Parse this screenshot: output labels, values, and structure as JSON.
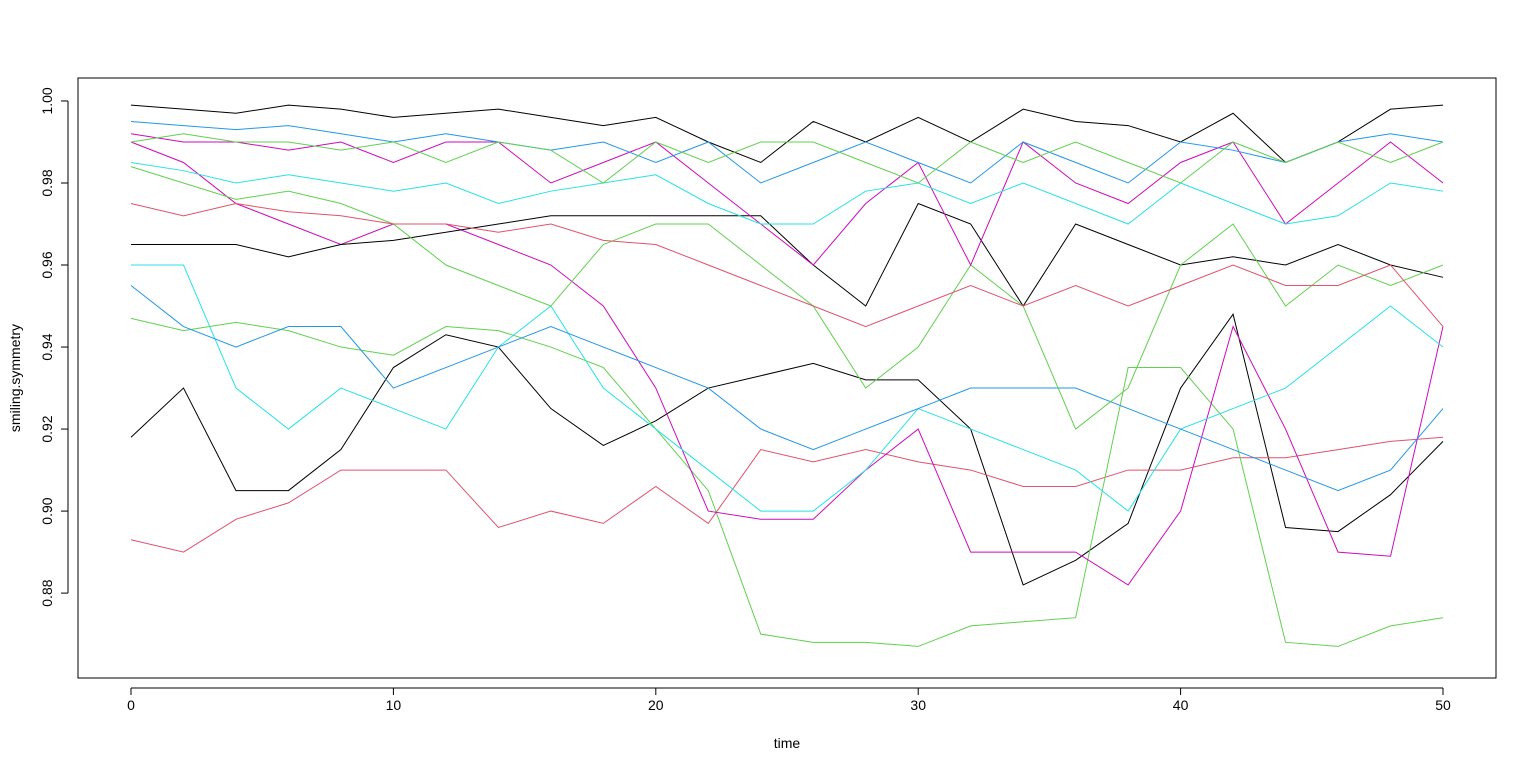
{
  "chart_data": {
    "type": "line",
    "x_label": "time",
    "y_label": "smiling.symmetry",
    "xlim": [
      -2.02,
      52.02
    ],
    "ylim": [
      0.8593,
      1.0056
    ],
    "xticks": [
      0,
      10,
      20,
      30,
      40,
      50
    ],
    "yticks": [
      0.88,
      {
        "value": 0.9,
        "label": "0.90"
      },
      0.92,
      0.94,
      0.96,
      0.98,
      {
        "value": 1,
        "label": "1.00"
      }
    ],
    "grid": false,
    "x": [
      0,
      2,
      4,
      6,
      8,
      10,
      12,
      14,
      16,
      18,
      20,
      22,
      24,
      26,
      28,
      30,
      32,
      34,
      36,
      38,
      40,
      42,
      44,
      46,
      48,
      50
    ],
    "series": [
      {
        "color": "#000000",
        "values": [
          0.918,
          0.93,
          0.905,
          0.905,
          0.915,
          0.935,
          0.943,
          0.94,
          0.925,
          0.916,
          0.922,
          0.93,
          0.933,
          0.936,
          0.932,
          0.932,
          0.92,
          0.882,
          0.888,
          0.897,
          0.93,
          0.948,
          0.896,
          0.895,
          0.904,
          0.917
        ]
      },
      {
        "color": "#DF536B",
        "values": [
          0.893,
          0.89,
          0.898,
          0.902,
          0.91,
          0.91,
          0.91,
          0.896,
          0.9,
          0.897,
          0.906,
          0.897,
          0.915,
          0.912,
          0.915,
          0.912,
          0.91,
          0.906,
          0.906,
          0.91,
          0.91,
          0.913,
          0.913,
          0.915,
          0.917,
          0.918
        ]
      },
      {
        "color": "#61D04F",
        "values": [
          0.947,
          0.944,
          0.946,
          0.944,
          0.94,
          0.938,
          0.945,
          0.944,
          0.94,
          0.935,
          0.92,
          0.905,
          0.87,
          0.868,
          0.868,
          0.867,
          0.872,
          0.873,
          0.874,
          0.935,
          0.935,
          0.92,
          0.868,
          0.867,
          0.872,
          0.874
        ]
      },
      {
        "color": "#CD0BBC",
        "values": [
          0.99,
          0.985,
          0.975,
          0.97,
          0.965,
          0.97,
          0.97,
          0.965,
          0.96,
          0.95,
          0.93,
          0.9,
          0.898,
          0.898,
          0.91,
          0.92,
          0.89,
          0.89,
          0.89,
          0.882,
          0.9,
          0.945,
          0.92,
          0.89,
          0.889,
          0.945
        ]
      },
      {
        "color": "#28E2E5",
        "values": [
          0.96,
          0.96,
          0.93,
          0.92,
          0.93,
          0.925,
          0.92,
          0.94,
          0.95,
          0.93,
          0.92,
          0.91,
          0.9,
          0.9,
          0.91,
          0.925,
          0.92,
          0.915,
          0.91,
          0.9,
          0.92,
          0.925,
          0.93,
          0.94,
          0.95,
          0.94
        ]
      },
      {
        "color": "#2297E6",
        "values": [
          0.955,
          0.945,
          0.94,
          0.945,
          0.945,
          0.93,
          0.935,
          0.94,
          0.945,
          0.94,
          0.935,
          0.93,
          0.92,
          0.915,
          0.92,
          0.925,
          0.93,
          0.93,
          0.93,
          0.925,
          0.92,
          0.915,
          0.91,
          0.905,
          0.91,
          0.925
        ]
      },
      {
        "color": "#000000",
        "values": [
          0.999,
          0.998,
          0.997,
          0.999,
          0.998,
          0.996,
          0.997,
          0.998,
          0.996,
          0.994,
          0.996,
          0.99,
          0.985,
          0.995,
          0.99,
          0.996,
          0.99,
          0.998,
          0.995,
          0.994,
          0.99,
          0.997,
          0.985,
          0.99,
          0.998,
          0.999
        ]
      },
      {
        "color": "#000000",
        "values": [
          0.965,
          0.965,
          0.965,
          0.962,
          0.965,
          0.966,
          0.968,
          0.97,
          0.972,
          0.972,
          0.972,
          0.972,
          0.972,
          0.96,
          0.95,
          0.975,
          0.97,
          0.95,
          0.97,
          0.965,
          0.96,
          0.962,
          0.96,
          0.965,
          0.96,
          0.957
        ]
      },
      {
        "color": "#61D04F",
        "values": [
          0.984,
          0.98,
          0.976,
          0.978,
          0.975,
          0.97,
          0.96,
          0.955,
          0.95,
          0.965,
          0.97,
          0.97,
          0.96,
          0.95,
          0.93,
          0.94,
          0.96,
          0.95,
          0.92,
          0.93,
          0.96,
          0.97,
          0.95,
          0.96,
          0.955,
          0.96
        ]
      },
      {
        "color": "#CD0BBC",
        "values": [
          0.992,
          0.99,
          0.99,
          0.988,
          0.99,
          0.985,
          0.99,
          0.99,
          0.98,
          0.985,
          0.99,
          0.98,
          0.97,
          0.96,
          0.975,
          0.985,
          0.96,
          0.99,
          0.98,
          0.975,
          0.985,
          0.99,
          0.97,
          0.98,
          0.99,
          0.98
        ]
      },
      {
        "color": "#28E2E5",
        "values": [
          0.985,
          0.983,
          0.98,
          0.982,
          0.98,
          0.978,
          0.98,
          0.975,
          0.978,
          0.98,
          0.982,
          0.975,
          0.97,
          0.97,
          0.978,
          0.98,
          0.975,
          0.98,
          0.975,
          0.97,
          0.98,
          0.975,
          0.97,
          0.972,
          0.98,
          0.978
        ]
      },
      {
        "color": "#DF536B",
        "values": [
          0.975,
          0.972,
          0.975,
          0.973,
          0.972,
          0.97,
          0.97,
          0.968,
          0.97,
          0.966,
          0.965,
          0.96,
          0.955,
          0.95,
          0.945,
          0.95,
          0.955,
          0.95,
          0.955,
          0.95,
          0.955,
          0.96,
          0.955,
          0.955,
          0.96,
          0.945
        ]
      },
      {
        "color": "#2297E6",
        "values": [
          0.995,
          0.994,
          0.993,
          0.994,
          0.992,
          0.99,
          0.992,
          0.99,
          0.988,
          0.99,
          0.985,
          0.99,
          0.98,
          0.985,
          0.99,
          0.985,
          0.98,
          0.99,
          0.985,
          0.98,
          0.99,
          0.988,
          0.985,
          0.99,
          0.992,
          0.99
        ]
      },
      {
        "color": "#61D04F",
        "values": [
          0.99,
          0.992,
          0.99,
          0.99,
          0.988,
          0.99,
          0.985,
          0.99,
          0.988,
          0.98,
          0.99,
          0.985,
          0.99,
          0.99,
          0.985,
          0.98,
          0.99,
          0.985,
          0.99,
          0.985,
          0.98,
          0.99,
          0.985,
          0.99,
          0.985,
          0.99
        ]
      }
    ]
  }
}
